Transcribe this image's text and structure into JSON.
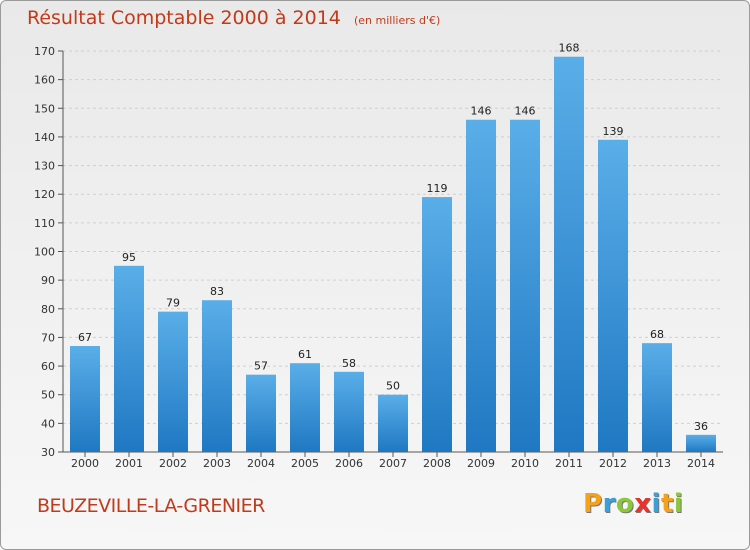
{
  "title": "Résultat Comptable 2000 à 2014",
  "subtitle": "(en milliers d'€)",
  "commune": "BEUZEVILLE-LA-GRENIER",
  "logo": {
    "letters": [
      "P",
      "r",
      "o",
      "x",
      "i",
      "t",
      "i"
    ],
    "colors": [
      "#f5a21b",
      "#3aa0d8",
      "#8cc63f",
      "#e8322b",
      "#3aa0d8",
      "#f5a21b",
      "#8cc63f"
    ]
  },
  "colors": {
    "bar_top": "#5aaee8",
    "bar_bottom": "#1f78c2",
    "title": "#c23a1a",
    "grid": "#cfcfcf"
  },
  "chart_data": {
    "type": "bar",
    "title": "Résultat Comptable 2000 à 2014",
    "categories": [
      "2000",
      "2001",
      "2002",
      "2003",
      "2004",
      "2005",
      "2006",
      "2007",
      "2008",
      "2009",
      "2010",
      "2011",
      "2012",
      "2013",
      "2014"
    ],
    "values": [
      67,
      95,
      79,
      83,
      57,
      61,
      58,
      50,
      119,
      146,
      146,
      168,
      139,
      68,
      36
    ],
    "ylim": [
      30,
      170
    ],
    "yticks": [
      30,
      40,
      50,
      60,
      70,
      80,
      90,
      100,
      110,
      120,
      130,
      140,
      150,
      160,
      170
    ],
    "grid": true
  }
}
